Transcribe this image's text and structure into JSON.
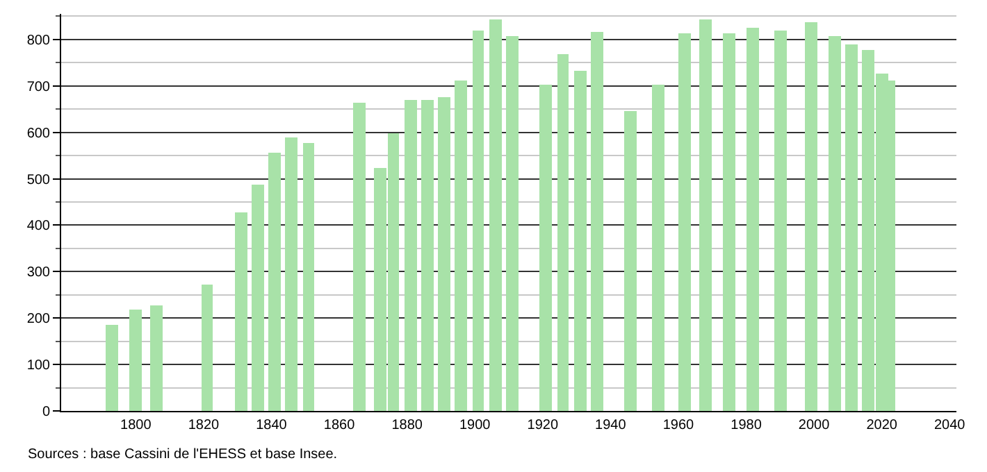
{
  "chart_data": {
    "type": "bar",
    "x": [
      1793,
      1800,
      1806,
      1821,
      1831,
      1836,
      1841,
      1846,
      1851,
      1866,
      1872,
      1876,
      1881,
      1886,
      1891,
      1896,
      1901,
      1906,
      1911,
      1921,
      1926,
      1931,
      1936,
      1946,
      1954,
      1962,
      1968,
      1975,
      1982,
      1990,
      1999,
      2006,
      2011,
      2016,
      2020,
      2022
    ],
    "values": [
      184,
      218,
      227,
      273,
      429,
      488,
      556,
      588,
      577,
      665,
      524,
      598,
      671,
      671,
      676,
      711,
      818,
      843,
      806,
      703,
      767,
      731,
      817,
      647,
      702,
      814,
      843,
      814,
      826,
      820,
      837,
      808,
      790,
      776,
      726,
      711
    ],
    "color": "#a8e2a8",
    "xlim": [
      1778,
      2042
    ],
    "xticks": [
      1800,
      1820,
      1840,
      1860,
      1880,
      1900,
      1920,
      1940,
      1960,
      1980,
      2000,
      2020,
      2040
    ],
    "ylim": [
      0,
      855
    ],
    "yticks": [
      0,
      {
        "value": 50,
        "label": null
      },
      100,
      {
        "value": 150,
        "label": null
      },
      200,
      {
        "value": 250,
        "label": null
      },
      300,
      {
        "value": 350,
        "label": null
      },
      400,
      {
        "value": 450,
        "label": null
      },
      500,
      {
        "value": 550,
        "label": null
      },
      600,
      {
        "value": 650,
        "label": null
      },
      700,
      {
        "value": 750,
        "label": null
      },
      800,
      {
        "value": 850,
        "label": null
      }
    ],
    "grid": "y",
    "annotations": [
      "Sources : base Cassini de l'EHESS et base Insee."
    ]
  }
}
